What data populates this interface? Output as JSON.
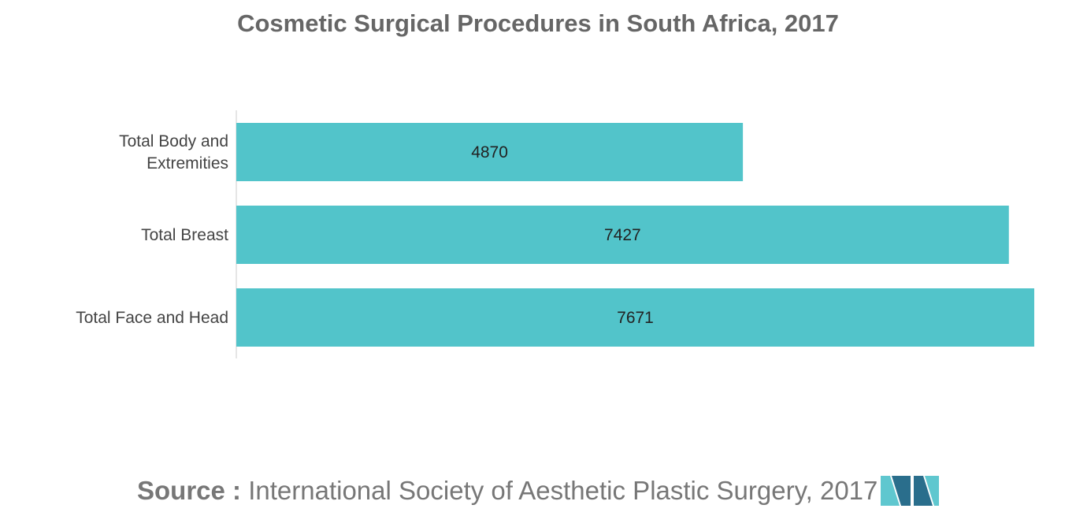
{
  "chart_data": {
    "type": "bar",
    "orientation": "horizontal",
    "title": "Cosmetic Surgical Procedures in South Africa, 2017",
    "categories": [
      "Total Body and\nExtremities",
      "Total Breast",
      "Total Face and Head"
    ],
    "values": [
      4870,
      7427,
      7671
    ],
    "xlabel": "",
    "ylabel": "",
    "xlim": [
      0,
      7671
    ],
    "grid": false,
    "legend": "none",
    "data_labels": true
  },
  "source": {
    "prefix": "Source :",
    "text": "International Society of Aesthetic Plastic Surgery, 2017"
  },
  "colors": {
    "bar": "#52c4ca",
    "axis": "#cccccc",
    "logo_dark": "#2a6e8c",
    "logo_light": "#5fc7cf"
  },
  "logo": {
    "icon": "company-logo-icon"
  }
}
